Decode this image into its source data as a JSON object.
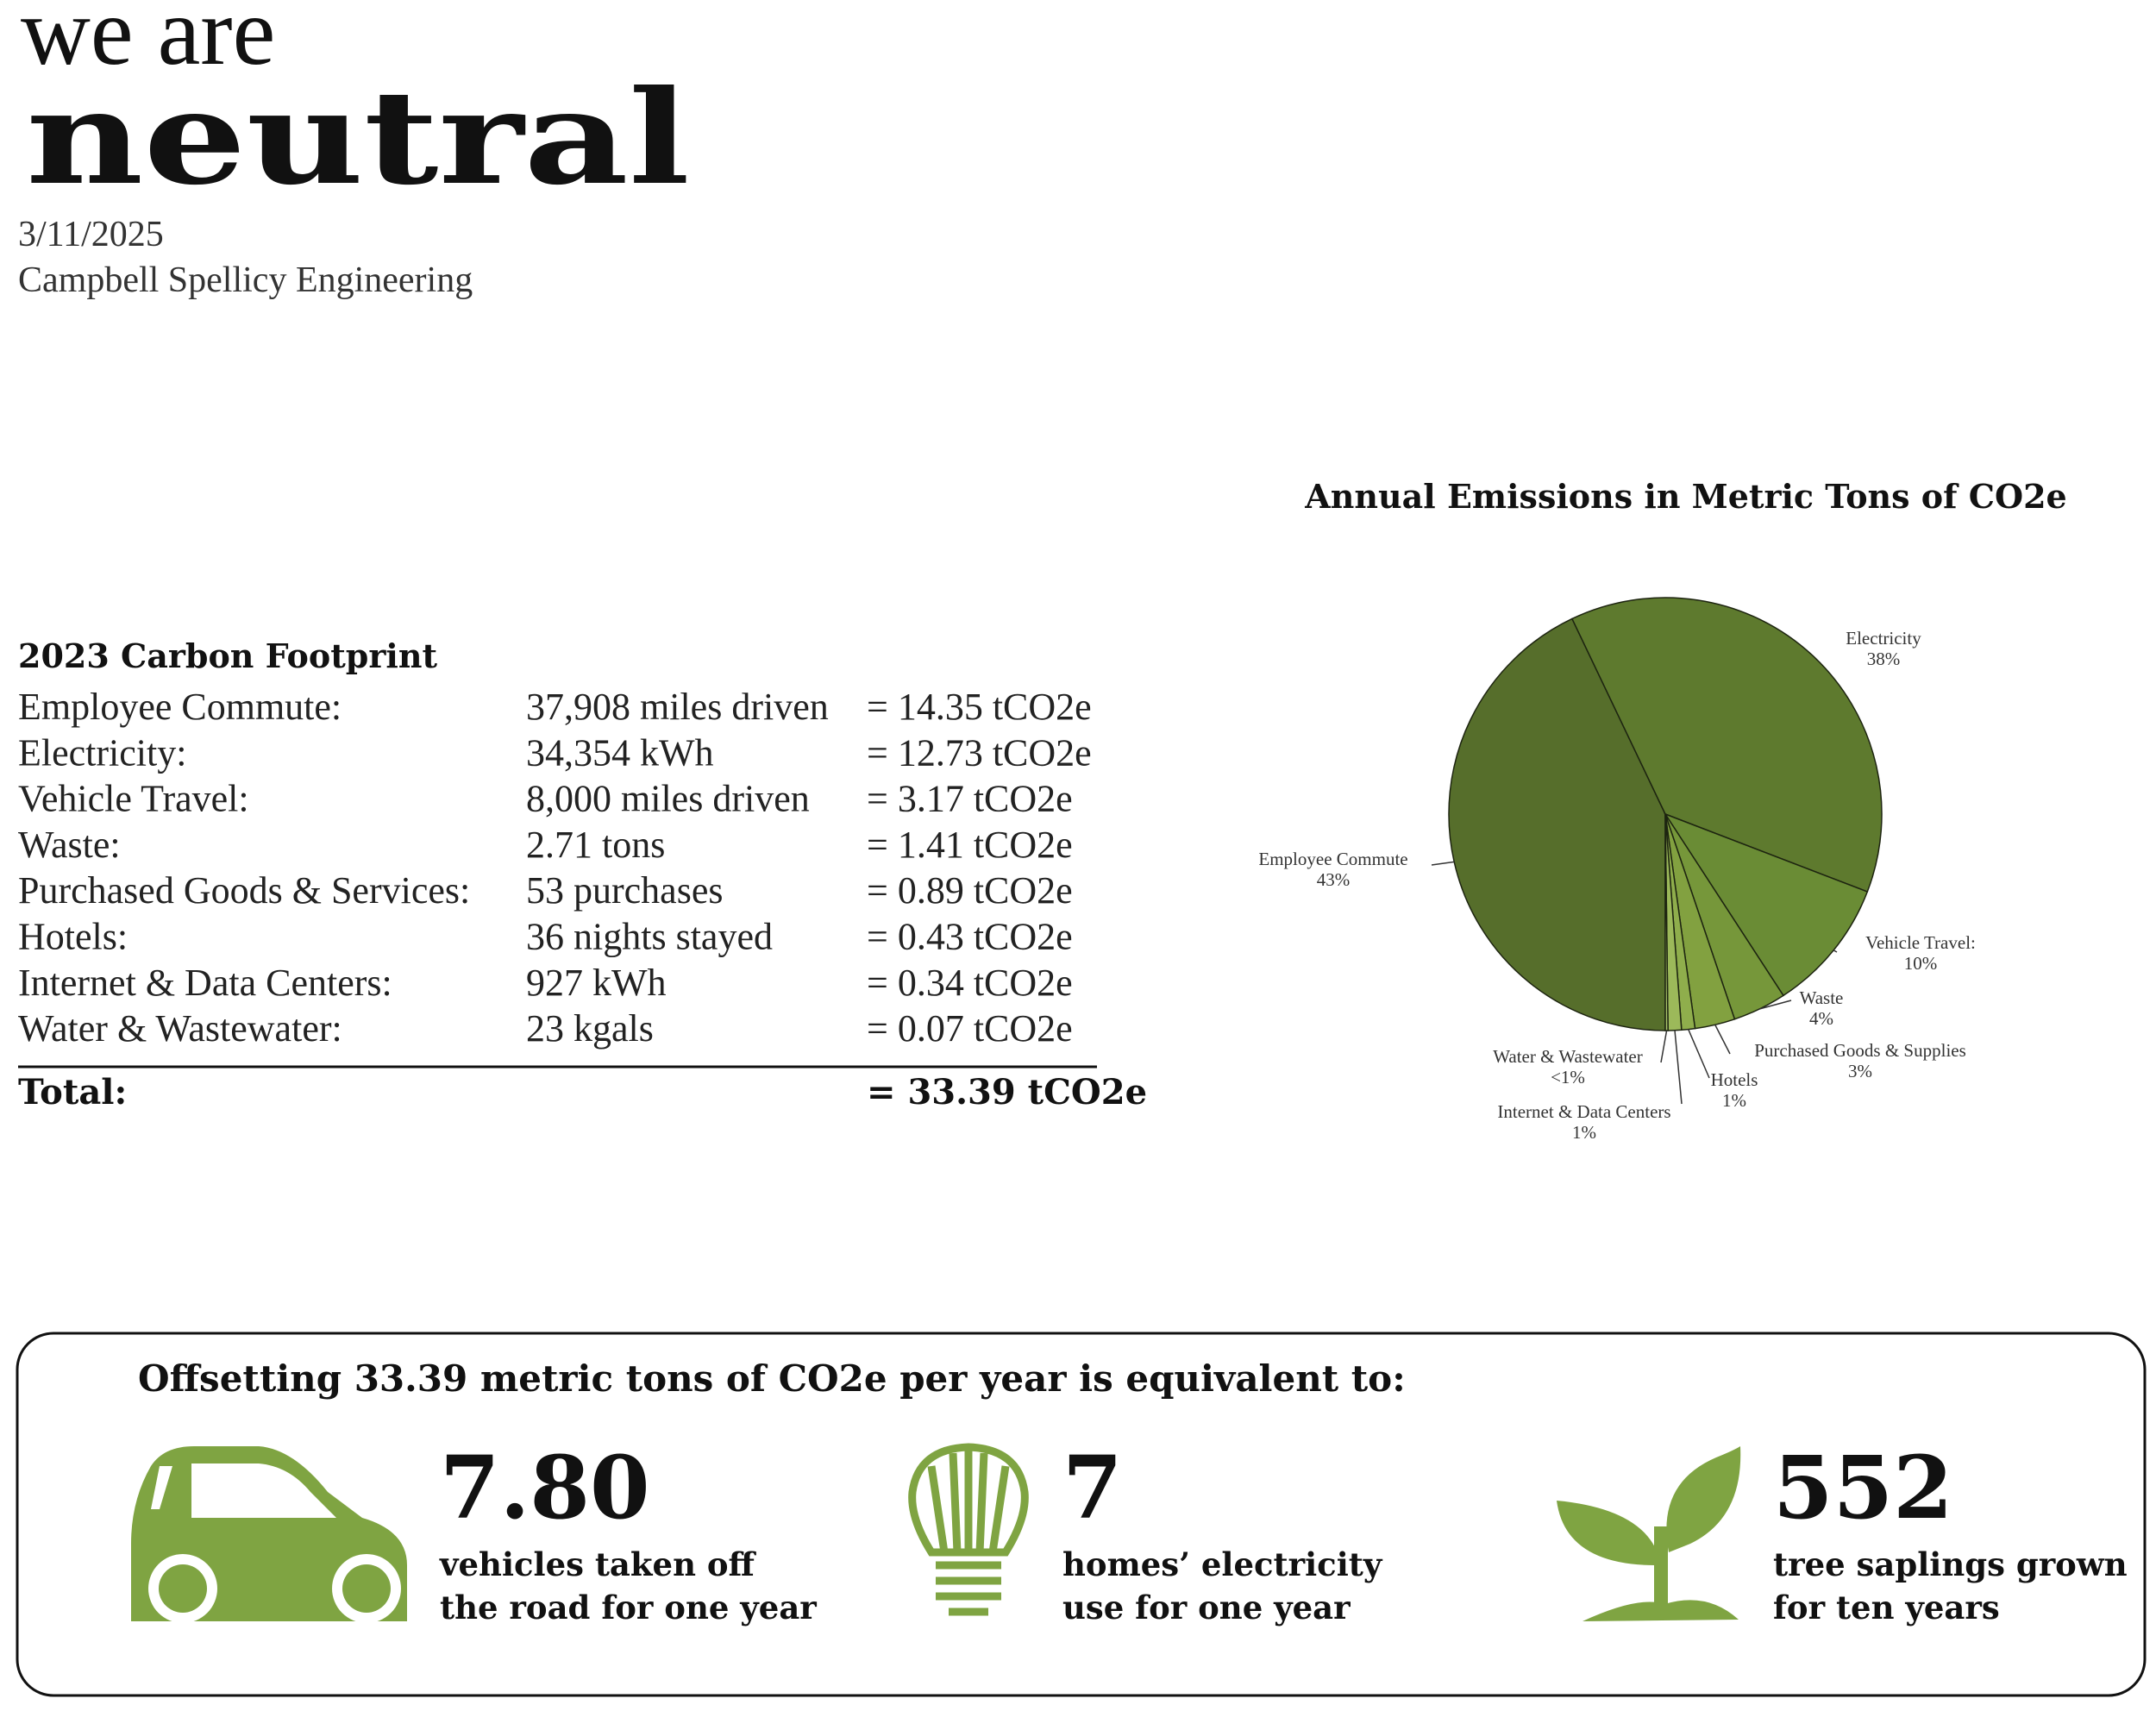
{
  "header": {
    "logo_top": "we are",
    "logo_bottom": "neutral",
    "date": "3/11/2025",
    "company": "Campbell Spellicy Engineering"
  },
  "footprint": {
    "title": "2023 Carbon Footprint",
    "rows": [
      [
        "Employee Commute:",
        "37,908 miles driven",
        "= 14.35 tCO2e"
      ],
      [
        "Electricity:",
        "34,354 kWh",
        "= 12.73 tCO2e"
      ],
      [
        "Vehicle Travel:",
        "8,000 miles driven",
        "= 3.17 tCO2e"
      ],
      [
        "Waste:",
        "2.71 tons",
        "= 1.41 tCO2e"
      ],
      [
        "Purchased Goods & Services:",
        "53 purchases",
        "= 0.89 tCO2e"
      ],
      [
        "Hotels:",
        "36 nights stayed",
        "= 0.43 tCO2e"
      ],
      [
        "Internet & Data Centers:",
        "927 kWh",
        "= 0.34 tCO2e"
      ],
      [
        "Water & Wastewater:",
        "23 kgals",
        "= 0.07 tCO2e"
      ]
    ],
    "total_label": "Total:",
    "total": "= 33.39 tCO2e"
  },
  "chart_data": {
    "type": "pie",
    "title": "Annual Emissions in Metric Tons of CO2e",
    "categories": [
      "Employee Commute",
      "Electricity",
      "Vehicle Travel:",
      "Waste",
      "Purchased Goods & Supplies",
      "Hotels",
      "Internet & Data Centers",
      "Water & Wastewater"
    ],
    "values": [
      43,
      38,
      10,
      4,
      3,
      1,
      1,
      0.2
    ],
    "value_labels": [
      "43%",
      "38%",
      "10%",
      "4%",
      "3%",
      "1%",
      "1%",
      "<1%"
    ],
    "colors": [
      "#566e2b",
      "#5e7a2e",
      "#6a8c35",
      "#76973a",
      "#82a140",
      "#8fae4c",
      "#9cb95a",
      "#a9c46a"
    ]
  },
  "equivalents": {
    "title": "Offsetting 33.39 metric tons of CO2e per year is equivalent to:",
    "items": [
      {
        "number": "7.80",
        "text": [
          "vehicles taken off",
          "the road for one year"
        ]
      },
      {
        "number": "7",
        "text": [
          "homes’ electricity",
          "use for one year"
        ]
      },
      {
        "number": "552",
        "text": [
          "tree saplings grown",
          "for ten years"
        ]
      }
    ]
  }
}
